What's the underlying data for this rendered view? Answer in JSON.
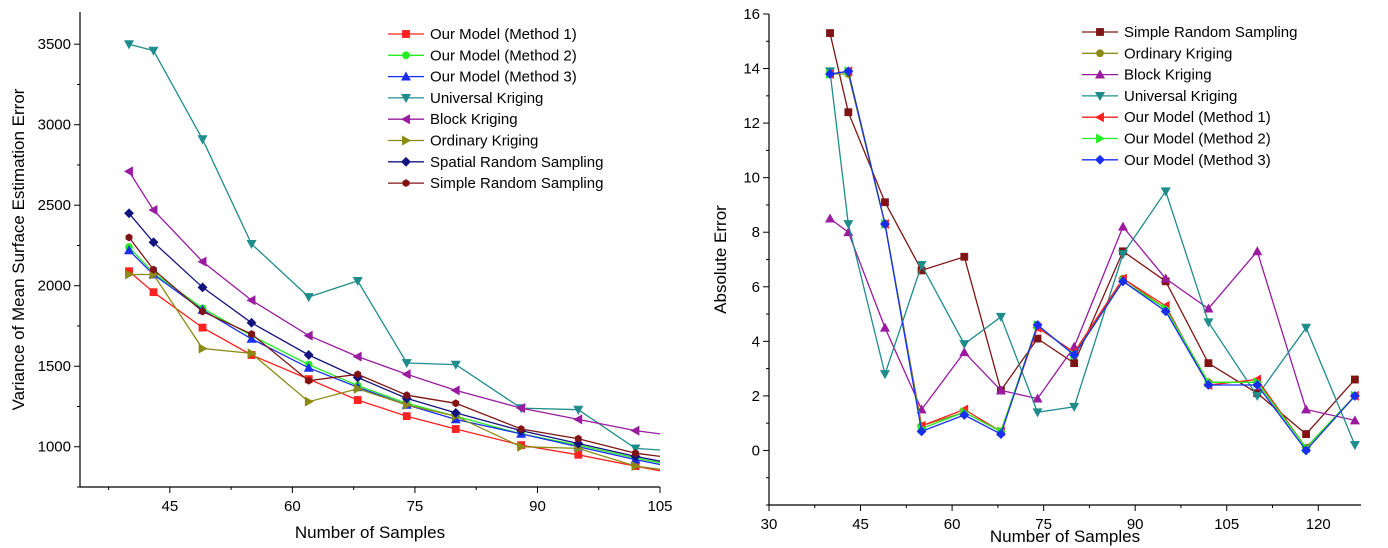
{
  "chart_data": [
    {
      "type": "line",
      "xlabel": "Number of Samples",
      "ylabel": "Variance of Mean Surface Estimation Error",
      "xlim": [
        34,
        105
      ],
      "ylim": [
        750,
        3700
      ],
      "xticks": [
        45,
        60,
        75,
        90,
        105
      ],
      "yticks": [
        1000,
        1500,
        2000,
        2500,
        3000,
        3500
      ],
      "legend_position": "top-right",
      "grid": false,
      "series": [
        {
          "name": "Our Model (Method 1)",
          "color": "#ff2020",
          "marker": "square",
          "x": [
            40,
            43,
            49,
            55,
            62,
            68,
            74,
            80,
            88,
            95,
            102,
            105
          ],
          "y": [
            2090,
            1960,
            1740,
            1570,
            1420,
            1290,
            1190,
            1110,
            1010,
            950,
            880,
            850
          ]
        },
        {
          "name": "Our Model (Method 2)",
          "color": "#22ee22",
          "marker": "circle",
          "x": [
            40,
            43,
            49,
            55,
            62,
            68,
            74,
            80,
            88,
            95,
            102,
            105
          ],
          "y": [
            2240,
            2080,
            1860,
            1690,
            1510,
            1380,
            1270,
            1190,
            1080,
            1010,
            930,
            900
          ]
        },
        {
          "name": "Our Model (Method 3)",
          "color": "#1a2ef0",
          "marker": "triangle-up",
          "x": [
            40,
            43,
            49,
            55,
            62,
            68,
            74,
            80,
            88,
            95,
            102,
            105
          ],
          "y": [
            2220,
            2070,
            1850,
            1670,
            1490,
            1370,
            1260,
            1170,
            1080,
            1000,
            920,
            890
          ]
        },
        {
          "name": "Universal Kriging",
          "color": "#1f8c8c",
          "marker": "triangle-down",
          "x": [
            40,
            43,
            49,
            55,
            62,
            68,
            74,
            80,
            88,
            95,
            102,
            105
          ],
          "y": [
            3500,
            3460,
            2910,
            2260,
            1930,
            2030,
            1520,
            1510,
            1240,
            1230,
            990,
            980
          ]
        },
        {
          "name": "Block Kriging",
          "color": "#9a1aa0",
          "marker": "triangle-left",
          "x": [
            40,
            43,
            49,
            55,
            62,
            68,
            74,
            80,
            88,
            95,
            102,
            105
          ],
          "y": [
            2710,
            2470,
            2150,
            1910,
            1690,
            1560,
            1450,
            1350,
            1240,
            1170,
            1100,
            1080
          ]
        },
        {
          "name": "Ordinary Kriging",
          "color": "#8a8a14",
          "marker": "triangle-right",
          "x": [
            40,
            43,
            49,
            55,
            62,
            68,
            74,
            80,
            88,
            95,
            102,
            105
          ],
          "y": [
            2070,
            2070,
            1610,
            1580,
            1280,
            1360,
            1260,
            1190,
            1000,
            990,
            880,
            860
          ]
        },
        {
          "name": "Spatial Random Sampling",
          "color": "#141480",
          "marker": "diamond",
          "x": [
            40,
            43,
            49,
            55,
            62,
            68,
            74,
            80,
            88,
            95,
            102,
            105
          ],
          "y": [
            2450,
            2270,
            1990,
            1770,
            1570,
            1430,
            1300,
            1210,
            1100,
            1020,
            940,
            910
          ]
        },
        {
          "name": "Simple Random Sampling",
          "color": "#801414",
          "marker": "hexagon",
          "x": [
            40,
            43,
            49,
            55,
            62,
            68,
            74,
            80,
            88,
            95,
            102,
            105
          ],
          "y": [
            2300,
            2100,
            1840,
            1700,
            1410,
            1450,
            1320,
            1270,
            1110,
            1050,
            960,
            940
          ]
        }
      ]
    },
    {
      "type": "line",
      "xlabel": "Number of Samples",
      "ylabel": "Absolute Error",
      "xlim": [
        30,
        127
      ],
      "ylim": [
        -2,
        16
      ],
      "xticks": [
        30,
        45,
        60,
        75,
        90,
        105,
        120
      ],
      "yticks": [
        0,
        2,
        4,
        6,
        8,
        10,
        12,
        14,
        16
      ],
      "legend_position": "top-right",
      "grid": false,
      "series": [
        {
          "name": "Simple Random Sampling",
          "color": "#801414",
          "marker": "square",
          "x": [
            40,
            43,
            49,
            55,
            62,
            68,
            74,
            80,
            88,
            95,
            102,
            110,
            118,
            126
          ],
          "y": [
            15.3,
            12.4,
            9.1,
            6.6,
            7.1,
            2.2,
            4.1,
            3.2,
            7.3,
            6.2,
            3.2,
            2.1,
            0.6,
            2.6
          ]
        },
        {
          "name": "Ordinary Kriging",
          "color": "#8a8a14",
          "marker": "circle",
          "x": [
            40,
            43,
            49,
            55,
            62,
            68,
            74,
            80,
            88,
            95,
            102,
            110,
            118,
            126
          ],
          "y": [
            13.8,
            13.8,
            8.3,
            0.9,
            1.4,
            0.7,
            4.6,
            3.5,
            6.3,
            5.2,
            2.5,
            2.5,
            0.1,
            2.0
          ]
        },
        {
          "name": "Block Kriging",
          "color": "#9a1aa0",
          "marker": "triangle-up",
          "x": [
            40,
            43,
            49,
            55,
            62,
            68,
            74,
            80,
            88,
            95,
            102,
            110,
            118,
            126
          ],
          "y": [
            8.5,
            8.0,
            4.5,
            1.5,
            3.6,
            2.2,
            1.9,
            3.8,
            8.2,
            6.3,
            5.2,
            7.3,
            1.5,
            1.1
          ]
        },
        {
          "name": "Universal Kriging",
          "color": "#1f8c8c",
          "marker": "triangle-down",
          "x": [
            40,
            43,
            49,
            55,
            62,
            68,
            74,
            80,
            88,
            95,
            102,
            110,
            118,
            126
          ],
          "y": [
            13.9,
            8.3,
            2.8,
            6.8,
            3.9,
            4.9,
            1.4,
            1.6,
            7.2,
            9.5,
            4.7,
            2.0,
            4.5,
            0.2
          ]
        },
        {
          "name": "Our Model (Method 1)",
          "color": "#ff2020",
          "marker": "triangle-left",
          "x": [
            40,
            43,
            49,
            55,
            62,
            68,
            74,
            80,
            88,
            95,
            102,
            110,
            118,
            126
          ],
          "y": [
            13.8,
            13.9,
            8.3,
            0.9,
            1.5,
            0.7,
            4.5,
            3.6,
            6.3,
            5.3,
            2.4,
            2.6,
            0.1,
            2.0
          ]
        },
        {
          "name": "Our Model (Method 2)",
          "color": "#22ee22",
          "marker": "triangle-right",
          "x": [
            40,
            43,
            49,
            55,
            62,
            68,
            74,
            80,
            88,
            95,
            102,
            110,
            118,
            126
          ],
          "y": [
            13.8,
            13.9,
            8.3,
            0.8,
            1.4,
            0.7,
            4.6,
            3.5,
            6.2,
            5.2,
            2.5,
            2.5,
            0.1,
            2.0
          ]
        },
        {
          "name": "Our Model (Method 3)",
          "color": "#1a2ef0",
          "marker": "diamond",
          "x": [
            40,
            43,
            49,
            55,
            62,
            68,
            74,
            80,
            88,
            95,
            102,
            110,
            118,
            126
          ],
          "y": [
            13.8,
            13.9,
            8.3,
            0.7,
            1.3,
            0.6,
            4.6,
            3.5,
            6.2,
            5.1,
            2.4,
            2.4,
            0.0,
            2.0
          ]
        }
      ]
    }
  ]
}
